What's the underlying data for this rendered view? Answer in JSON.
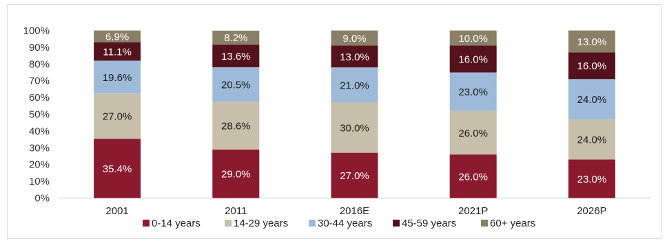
{
  "chart_data": {
    "type": "bar",
    "stacked": true,
    "categories": [
      "2001",
      "2011",
      "2016E",
      "2021P",
      "2026P"
    ],
    "series": [
      {
        "name": "0-14 years",
        "color": "#8b1a2f",
        "values": [
          35.4,
          29.0,
          27.0,
          26.0,
          23.0
        ],
        "labels": [
          "35.4%",
          "29.0%",
          "27.0%",
          "26.0%",
          "23.0%"
        ]
      },
      {
        "name": "14-29 years",
        "color": "#c7bfaa",
        "values": [
          27.0,
          28.6,
          30.0,
          26.0,
          24.0
        ],
        "labels": [
          "27.0%",
          "28.6%",
          "30.0%",
          "26.0%",
          "24.0%"
        ]
      },
      {
        "name": "30-44 years",
        "color": "#9dbad8",
        "values": [
          19.6,
          20.5,
          21.0,
          23.0,
          24.0
        ],
        "labels": [
          "19.6%",
          "20.5%",
          "21.0%",
          "23.0%",
          "24.0%"
        ]
      },
      {
        "name": "45-59 years",
        "color": "#54121d",
        "values": [
          11.1,
          13.6,
          13.0,
          16.0,
          16.0
        ],
        "labels": [
          "11.1%",
          "13.6%",
          "13.0%",
          "16.0%",
          "16.0%"
        ]
      },
      {
        "name": "60+ years",
        "color": "#8a8068",
        "values": [
          6.9,
          8.2,
          9.0,
          10.0,
          13.0
        ],
        "labels": [
          "6.9%",
          "8.2%",
          "9.0%",
          "10.0%",
          "13.0%"
        ]
      }
    ],
    "yticks": [
      "0%",
      "10%",
      "20%",
      "30%",
      "40%",
      "50%",
      "60%",
      "70%",
      "80%",
      "90%",
      "100%"
    ],
    "ylim": [
      0,
      100
    ],
    "grid": false,
    "legend": "bottom",
    "title": "",
    "xlabel": "",
    "ylabel": ""
  }
}
